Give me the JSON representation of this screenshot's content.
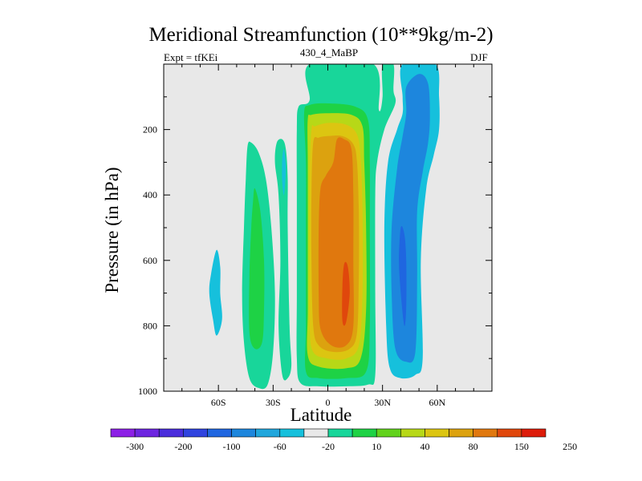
{
  "chart_data": {
    "type": "contour",
    "title": "Meridional Streamfunction (10**9kg/m-2)",
    "left_label": "Expt = tfKEi",
    "subtitle": "430_4_MaBP",
    "right_label": "DJF",
    "xlabel": "Latitude",
    "ylabel": "Pressure (in hPa)",
    "xlim": [
      -90,
      90
    ],
    "ylim": [
      1000,
      0
    ],
    "x_ticks": [
      -60,
      -30,
      0,
      30,
      60
    ],
    "x_tick_labels": [
      "60S",
      "30S",
      "0",
      "30N",
      "60N"
    ],
    "y_ticks": [
      200,
      400,
      600,
      800,
      1000
    ],
    "y_tick_labels": [
      "200",
      "400",
      "600",
      "800",
      "1000"
    ],
    "background_color": "#e8e8e8",
    "colorbar": {
      "labels": [
        "-300",
        "-200",
        "-100",
        "-60",
        "-20",
        "10",
        "40",
        "80",
        "150",
        "250"
      ],
      "colors": [
        "#8c1fe6",
        "#6d25e0",
        "#4a2ddc",
        "#2f43df",
        "#1f66e0",
        "#1d86dd",
        "#20a6dc",
        "#16c0dc",
        "#e8e8e8",
        "#18d69a",
        "#1ed245",
        "#62d21c",
        "#b7d817",
        "#dcc511",
        "#dca20f",
        "#e0780e",
        "#e0470c",
        "#dd1c0a"
      ]
    },
    "regions": [
      {
        "name": "south-polar-negative",
        "level": -20,
        "color": "#16c0dc",
        "outline": [
          [
            -61,
            568
          ],
          [
            -59,
            620
          ],
          [
            -59,
            700
          ],
          [
            -58,
            780
          ],
          [
            -61,
            830
          ],
          [
            -63,
            780
          ],
          [
            -65,
            700
          ],
          [
            -64,
            640
          ]
        ]
      },
      {
        "name": "southern-ferrel-positive",
        "level": 10,
        "color": "#18d69a",
        "outline": [
          [
            -42,
            240
          ],
          [
            -38,
            270
          ],
          [
            -34,
            350
          ],
          [
            -31,
            500
          ],
          [
            -29,
            700
          ],
          [
            -30,
            880
          ],
          [
            -33,
            980
          ],
          [
            -38,
            990
          ],
          [
            -43,
            960
          ],
          [
            -46,
            850
          ],
          [
            -47,
            700
          ],
          [
            -46,
            500
          ],
          [
            -45,
            350
          ],
          [
            -44,
            250
          ]
        ]
      },
      {
        "name": "southern-ferrel-core",
        "level": 40,
        "color": "#1ed245",
        "outline": [
          [
            -40,
            380
          ],
          [
            -37,
            450
          ],
          [
            -35,
            600
          ],
          [
            -35,
            750
          ],
          [
            -36,
            850
          ],
          [
            -40,
            870
          ],
          [
            -43,
            820
          ],
          [
            -43,
            650
          ],
          [
            -42,
            500
          ],
          [
            -41,
            420
          ]
        ]
      },
      {
        "name": "subtropical-positive",
        "level": 10,
        "color": "#18d69a",
        "outline": [
          [
            -25,
            230
          ],
          [
            -23,
            260
          ],
          [
            -22,
            350
          ],
          [
            -22,
            500
          ],
          [
            -21,
            800
          ],
          [
            -20,
            920
          ],
          [
            -22,
            960
          ],
          [
            -25,
            950
          ],
          [
            -27,
            800
          ],
          [
            -26,
            600
          ],
          [
            -27,
            400
          ],
          [
            -29,
            300
          ],
          [
            -28,
            240
          ]
        ]
      },
      {
        "name": "subtropical-negative",
        "level": -20,
        "color": "#16c0dc",
        "outline": [
          [
            -24,
            260
          ],
          [
            -23,
            320
          ],
          [
            -24,
            400
          ],
          [
            -25,
            360
          ],
          [
            -25,
            290
          ]
        ]
      },
      {
        "name": "hadley-10",
        "level": 10,
        "color": "#18d69a",
        "outline": [
          [
            -10,
            0
          ],
          [
            -10,
            110
          ],
          [
            -16,
            130
          ],
          [
            -17,
            200
          ],
          [
            -17,
            400
          ],
          [
            -17,
            700
          ],
          [
            -17,
            900
          ],
          [
            -15,
            975
          ],
          [
            -5,
            985
          ],
          [
            10,
            985
          ],
          [
            22,
            980
          ],
          [
            26,
            950
          ],
          [
            26,
            700
          ],
          [
            26,
            400
          ],
          [
            27,
            300
          ],
          [
            31,
            200
          ],
          [
            37,
            120
          ],
          [
            36,
            80
          ],
          [
            36,
            0
          ],
          [
            30,
            0
          ],
          [
            30,
            100
          ],
          [
            28,
            140
          ],
          [
            25,
            0
          ]
        ]
      },
      {
        "name": "hadley-40",
        "level": 40,
        "color": "#1ed245",
        "outline": [
          [
            -13,
            150
          ],
          [
            -12,
            300
          ],
          [
            -12,
            500
          ],
          [
            -12,
            800
          ],
          [
            -12,
            940
          ],
          [
            -5,
            960
          ],
          [
            10,
            960
          ],
          [
            21,
            940
          ],
          [
            23,
            800
          ],
          [
            23,
            500
          ],
          [
            23,
            300
          ],
          [
            22,
            170
          ],
          [
            15,
            130
          ],
          [
            0,
            120
          ],
          [
            -10,
            125
          ]
        ]
      },
      {
        "name": "hadley-80",
        "level": 80,
        "color": "#b7d817",
        "outline": [
          [
            -11,
            170
          ],
          [
            -11,
            300
          ],
          [
            -11,
            500
          ],
          [
            -11,
            750
          ],
          [
            -11,
            890
          ],
          [
            -5,
            925
          ],
          [
            10,
            930
          ],
          [
            18,
            900
          ],
          [
            21,
            750
          ],
          [
            21,
            500
          ],
          [
            20,
            300
          ],
          [
            19,
            190
          ],
          [
            13,
            155
          ],
          [
            0,
            150
          ],
          [
            -9,
            155
          ]
        ]
      },
      {
        "name": "hadley-100",
        "level": 100,
        "color": "#dcc511",
        "outline": [
          [
            -9,
            200
          ],
          [
            -10,
            350
          ],
          [
            -10,
            600
          ],
          [
            -10,
            800
          ],
          [
            -8,
            880
          ],
          [
            0,
            900
          ],
          [
            10,
            900
          ],
          [
            17,
            860
          ],
          [
            19,
            700
          ],
          [
            19,
            450
          ],
          [
            18,
            290
          ],
          [
            16,
            215
          ],
          [
            10,
            185
          ],
          [
            0,
            180
          ],
          [
            -7,
            190
          ]
        ]
      },
      {
        "name": "hadley-150",
        "level": 150,
        "color": "#dca20f",
        "outline": [
          [
            -8,
            240
          ],
          [
            -9,
            400
          ],
          [
            -9,
            600
          ],
          [
            -8,
            800
          ],
          [
            -5,
            860
          ],
          [
            3,
            880
          ],
          [
            12,
            870
          ],
          [
            16,
            820
          ],
          [
            17,
            650
          ],
          [
            17,
            450
          ],
          [
            16,
            300
          ],
          [
            14,
            245
          ],
          [
            8,
            220
          ],
          [
            0,
            220
          ],
          [
            -5,
            225
          ]
        ]
      },
      {
        "name": "hadley-200",
        "level": 200,
        "color": "#e0780e",
        "outline": [
          [
            -4,
            380
          ],
          [
            -5,
            500
          ],
          [
            -5,
            700
          ],
          [
            -4,
            810
          ],
          [
            2,
            860
          ],
          [
            10,
            860
          ],
          [
            14,
            800
          ],
          [
            14,
            600
          ],
          [
            14,
            400
          ],
          [
            13,
            260
          ],
          [
            9,
            230
          ],
          [
            5,
            230
          ],
          [
            3,
            300
          ],
          [
            -1,
            340
          ]
        ]
      },
      {
        "name": "hadley-core",
        "level": 250,
        "color": "#e0470c",
        "outline": [
          [
            9,
            610
          ],
          [
            8,
            680
          ],
          [
            8,
            785
          ],
          [
            10,
            790
          ],
          [
            12,
            700
          ],
          [
            11,
            620
          ]
        ]
      },
      {
        "name": "northern-ferrel-negative",
        "level": -20,
        "color": "#16c0dc",
        "outline": [
          [
            41,
            0
          ],
          [
            41,
            100
          ],
          [
            41,
            150
          ],
          [
            38,
            200
          ],
          [
            33,
            300
          ],
          [
            31,
            500
          ],
          [
            32,
            800
          ],
          [
            34,
            930
          ],
          [
            40,
            960
          ],
          [
            48,
            950
          ],
          [
            52,
            900
          ],
          [
            51,
            600
          ],
          [
            54,
            380
          ],
          [
            58,
            280
          ],
          [
            61,
            200
          ],
          [
            61,
            100
          ],
          [
            59,
            0
          ]
        ]
      },
      {
        "name": "northern-ferrel-core",
        "level": -60,
        "color": "#1d86dd",
        "outline": [
          [
            43,
            70
          ],
          [
            43,
            150
          ],
          [
            41,
            220
          ],
          [
            38,
            320
          ],
          [
            35,
            500
          ],
          [
            35,
            700
          ],
          [
            37,
            870
          ],
          [
            43,
            910
          ],
          [
            48,
            880
          ],
          [
            49,
            650
          ],
          [
            49,
            450
          ],
          [
            52,
            330
          ],
          [
            55,
            240
          ],
          [
            56,
            160
          ],
          [
            55,
            60
          ],
          [
            50,
            30
          ]
        ]
      },
      {
        "name": "northern-ferrel-inner",
        "level": -100,
        "color": "#1f66e0",
        "outline": [
          [
            40,
            500
          ],
          [
            39,
            600
          ],
          [
            40,
            700
          ],
          [
            42,
            800
          ],
          [
            43,
            740
          ],
          [
            43,
            600
          ],
          [
            42,
            520
          ]
        ]
      }
    ]
  }
}
